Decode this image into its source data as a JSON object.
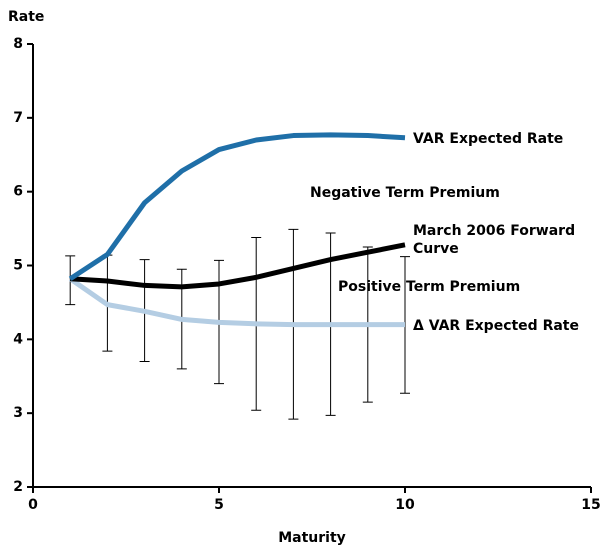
{
  "chart_data": {
    "type": "line",
    "y_label": "Rate",
    "x_label": "Maturity",
    "xlim": [
      0,
      15
    ],
    "xticks": [
      0,
      5,
      10,
      15
    ],
    "ylim": [
      2,
      8
    ],
    "yticks": [
      2,
      3,
      4,
      5,
      6,
      7,
      8
    ],
    "x": [
      1,
      2,
      3,
      4,
      5,
      6,
      7,
      8,
      9,
      10
    ],
    "series": [
      {
        "name": "VAR Expected Rate",
        "color": "#1f6fa8",
        "values": [
          4.82,
          5.15,
          5.85,
          6.28,
          6.57,
          6.7,
          6.76,
          6.77,
          6.76,
          6.73
        ]
      },
      {
        "name": "March 2006 Forward Curve",
        "color": "#000000",
        "values": [
          4.82,
          4.79,
          4.73,
          4.71,
          4.75,
          4.84,
          4.96,
          5.08,
          5.18,
          5.28
        ]
      },
      {
        "name": "Δ VAR Expected Rate",
        "color": "#b4cde3",
        "values": [
          4.82,
          4.47,
          4.38,
          4.27,
          4.23,
          4.21,
          4.2,
          4.2,
          4.2,
          4.2
        ]
      }
    ],
    "error_bars": {
      "upper": [
        5.13,
        5.14,
        5.08,
        4.95,
        5.07,
        5.38,
        5.49,
        5.44,
        5.25,
        5.12
      ],
      "lower": [
        4.47,
        3.84,
        3.7,
        3.6,
        3.4,
        3.04,
        2.92,
        2.97,
        3.15,
        3.27
      ]
    },
    "annotations": [
      "Negative Term Premium",
      "Positive Term Premium"
    ]
  }
}
